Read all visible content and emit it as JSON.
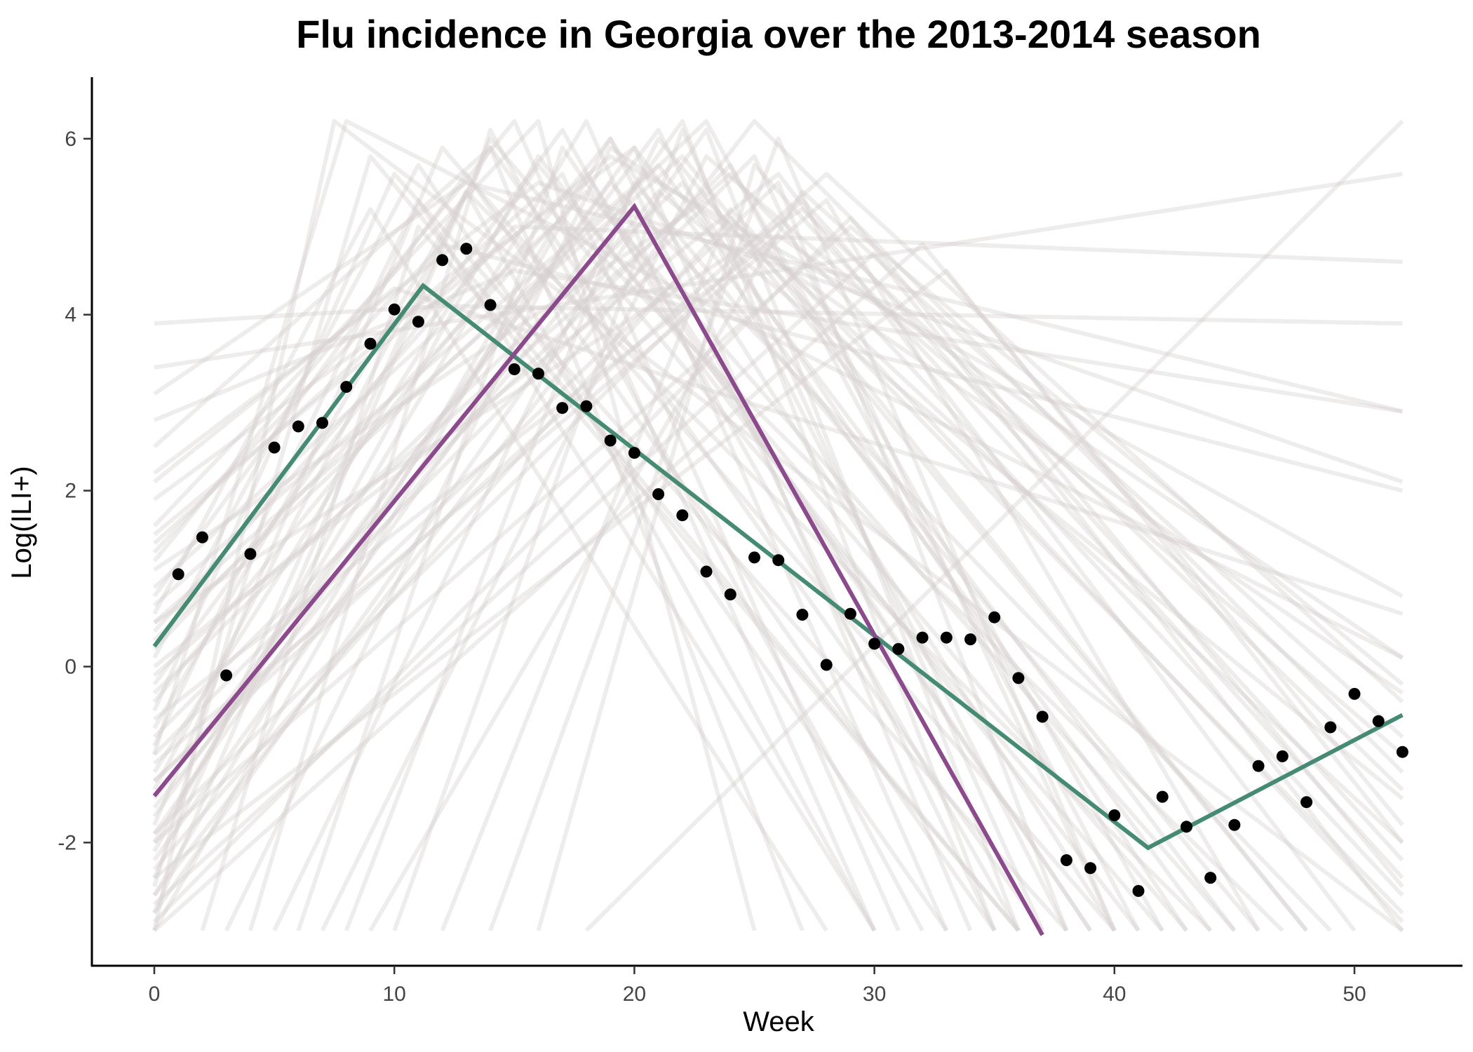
{
  "chart_data": {
    "type": "line",
    "title": "Flu incidence in Georgia over the 2013-2014 season",
    "xlabel": "Week",
    "ylabel": "Log(ILI+)",
    "xlim": [
      -2.6,
      54.5
    ],
    "ylim": [
      -3.4,
      6.7
    ],
    "x_ticks": [
      0,
      10,
      20,
      30,
      40,
      50
    ],
    "y_ticks": [
      -2,
      0,
      2,
      4,
      6
    ],
    "x_tick_labels": [
      "0",
      "10",
      "20",
      "30",
      "40",
      "50"
    ],
    "y_tick_labels": [
      "-2",
      "0",
      "2",
      "4",
      "6"
    ],
    "grid": false,
    "legend": "none",
    "colors": {
      "observed": "#000000",
      "fit_green": "#458B74",
      "fit_purple": "#8B4A8B",
      "samples": "#D8D0D0"
    },
    "observed_points": {
      "x": [
        1,
        2,
        3,
        4,
        5,
        6,
        7,
        8,
        9,
        10,
        11,
        12,
        13,
        14,
        15,
        16,
        17,
        18,
        19,
        20,
        21,
        22,
        23,
        24,
        25,
        26,
        27,
        28,
        29,
        30,
        31,
        32,
        33,
        34,
        35,
        36,
        37,
        38,
        39,
        40,
        41,
        42,
        43,
        44,
        45,
        46,
        47,
        48,
        49,
        50,
        51,
        52
      ],
      "y": [
        1.05,
        1.47,
        -0.1,
        1.28,
        2.49,
        2.73,
        2.77,
        3.18,
        3.67,
        4.06,
        3.92,
        4.62,
        4.75,
        4.11,
        3.38,
        3.33,
        2.94,
        2.96,
        2.57,
        2.43,
        1.96,
        1.72,
        1.08,
        0.82,
        1.24,
        1.21,
        0.59,
        0.02,
        0.6,
        0.26,
        0.2,
        0.33,
        0.33,
        0.31,
        0.56,
        -0.13,
        -0.57,
        -2.2,
        -2.29,
        -1.69,
        -2.55,
        -1.48,
        -1.82,
        -2.4,
        -1.8,
        -1.13,
        -1.02,
        -1.54,
        -0.69,
        -0.31,
        -0.62,
        -0.97
      ]
    },
    "fit_lines": [
      {
        "x": [
          0,
          11.2,
          41.4,
          52
        ],
        "y": [
          0.23,
          4.33,
          -2.06,
          -0.55
        ]
      },
      {
        "x": [
          0,
          20,
          37
        ],
        "y": [
          -1.47,
          5.23,
          -3.05
        ]
      }
    ],
    "sample_lines": [
      {
        "x": [
          0,
          7.5,
          52
        ],
        "y": [
          -3.0,
          6.2,
          -3.0
        ]
      },
      {
        "x": [
          0,
          12,
          52
        ],
        "y": [
          3.9,
          4.1,
          3.9
        ]
      },
      {
        "x": [
          0,
          52
        ],
        "y": [
          3.4,
          5.6
        ]
      },
      {
        "x": [
          0,
          13,
          52
        ],
        "y": [
          3.1,
          5.5,
          2.9
        ]
      },
      {
        "x": [
          0,
          16,
          52
        ],
        "y": [
          2.2,
          5.5,
          2.1
        ]
      },
      {
        "x": [
          0,
          19,
          52
        ],
        "y": [
          1.5,
          5.8,
          0.8
        ]
      },
      {
        "x": [
          0,
          15,
          52
        ],
        "y": [
          0.4,
          5.0,
          4.6
        ]
      },
      {
        "x": [
          0,
          8,
          52
        ],
        "y": [
          -1.0,
          6.2,
          0.1
        ]
      },
      {
        "x": [
          0,
          9,
          36
        ],
        "y": [
          -2.5,
          5.8,
          -3.0
        ]
      },
      {
        "x": [
          0,
          10,
          38
        ],
        "y": [
          -0.5,
          5.6,
          -3.0
        ]
      },
      {
        "x": [
          0,
          12,
          40
        ],
        "y": [
          -1.8,
          5.9,
          -3.0
        ]
      },
      {
        "x": [
          0,
          13,
          35
        ],
        "y": [
          0.8,
          5.6,
          -3.0
        ]
      },
      {
        "x": [
          0,
          14,
          42
        ],
        "y": [
          -2.8,
          6.0,
          -3.0
        ]
      },
      {
        "x": [
          0,
          15,
          30
        ],
        "y": [
          1.2,
          6.2,
          -3.0
        ]
      },
      {
        "x": [
          0,
          16,
          43
        ],
        "y": [
          -1.2,
          5.7,
          -3.0
        ]
      },
      {
        "x": [
          0,
          17,
          36
        ],
        "y": [
          -0.2,
          6.1,
          -3.0
        ]
      },
      {
        "x": [
          0,
          18,
          45
        ],
        "y": [
          0.2,
          5.4,
          -3.0
        ]
      },
      {
        "x": [
          0,
          18,
          33
        ],
        "y": [
          -2.0,
          6.2,
          -3.0
        ]
      },
      {
        "x": [
          0,
          19,
          40
        ],
        "y": [
          -3.0,
          6.0,
          -3.0
        ]
      },
      {
        "x": [
          0,
          20,
          44
        ],
        "y": [
          1.9,
          5.9,
          -3.0
        ]
      },
      {
        "x": [
          0,
          21,
          38
        ],
        "y": [
          -1.5,
          6.1,
          -3.0
        ]
      },
      {
        "x": [
          0,
          22,
          48
        ],
        "y": [
          0.5,
          5.8,
          -3.0
        ]
      },
      {
        "x": [
          0,
          22,
          35
        ],
        "y": [
          -2.2,
          6.2,
          -3.0
        ]
      },
      {
        "x": [
          0,
          23,
          52
        ],
        "y": [
          1.1,
          5.3,
          -2.8
        ]
      },
      {
        "x": [
          0,
          24,
          42
        ],
        "y": [
          -0.8,
          5.7,
          -3.0
        ]
      },
      {
        "x": [
          0,
          25,
          52
        ],
        "y": [
          -2.6,
          6.2,
          -1.2
        ]
      },
      {
        "x": [
          0,
          26,
          50
        ],
        "y": [
          0.0,
          5.6,
          -3.0
        ]
      },
      {
        "x": [
          0,
          27,
          52
        ],
        "y": [
          -1.9,
          5.3,
          -2.2
        ]
      },
      {
        "x": [
          0,
          28,
          52
        ],
        "y": [
          -1.3,
          5.6,
          -0.4
        ]
      },
      {
        "x": [
          0,
          29,
          52
        ],
        "y": [
          -2.9,
          5.1,
          -2.5
        ]
      },
      {
        "x": [
          0,
          32,
          52
        ],
        "y": [
          -3.0,
          4.8,
          -1.8
        ]
      },
      {
        "x": [
          2,
          11,
          36
        ],
        "y": [
          -3.0,
          5.0,
          -3.0
        ]
      },
      {
        "x": [
          4,
          14,
          32
        ],
        "y": [
          -3.0,
          6.1,
          -3.0
        ]
      },
      {
        "x": [
          6,
          17,
          39
        ],
        "y": [
          -3.0,
          5.9,
          -3.0
        ]
      },
      {
        "x": [
          8,
          20,
          46
        ],
        "y": [
          -3.0,
          5.5,
          -3.0
        ]
      },
      {
        "x": [
          10,
          22,
          37
        ],
        "y": [
          -3.0,
          6.1,
          -3.0
        ]
      },
      {
        "x": [
          12,
          24,
          52
        ],
        "y": [
          -3.0,
          5.2,
          -2.9
        ]
      },
      {
        "x": [
          14,
          26,
          40
        ],
        "y": [
          -3.0,
          6.0,
          -3.0
        ]
      },
      {
        "x": [
          16,
          25,
          52
        ],
        "y": [
          -3.0,
          5.7,
          -2.4
        ]
      },
      {
        "x": [
          18,
          52
        ],
        "y": [
          -3.0,
          6.2
        ]
      },
      {
        "x": [
          0,
          11,
          30
        ],
        "y": [
          -0.9,
          5.3,
          -3.0
        ]
      },
      {
        "x": [
          0,
          14,
          27
        ],
        "y": [
          2.5,
          5.9,
          -3.0
        ]
      },
      {
        "x": [
          0,
          16,
          25
        ],
        "y": [
          1.6,
          6.2,
          -3.0
        ]
      },
      {
        "x": [
          0,
          13,
          44
        ],
        "y": [
          -2.4,
          5.4,
          -3.0
        ]
      },
      {
        "x": [
          0,
          17,
          47
        ],
        "y": [
          0.9,
          5.1,
          -3.0
        ]
      },
      {
        "x": [
          0,
          19,
          35
        ],
        "y": [
          -0.4,
          6.0,
          -3.0
        ]
      },
      {
        "x": [
          0,
          21,
          52
        ],
        "y": [
          -1.6,
          5.4,
          -1.5
        ]
      },
      {
        "x": [
          0,
          23,
          41
        ],
        "y": [
          0.3,
          6.2,
          -3.0
        ]
      },
      {
        "x": [
          0,
          24,
          52
        ],
        "y": [
          -2.3,
          5.1,
          -2.0
        ]
      },
      {
        "x": [
          0,
          26,
          52
        ],
        "y": [
          -0.6,
          4.9,
          0.1
        ]
      },
      {
        "x": [
          0,
          28,
          46
        ],
        "y": [
          -1.1,
          5.3,
          -3.0
        ]
      },
      {
        "x": [
          0,
          30,
          52
        ],
        "y": [
          -2.7,
          4.7,
          -3.0
        ]
      },
      {
        "x": [
          0,
          12,
          52
        ],
        "y": [
          1.3,
          4.8,
          2.0
        ]
      },
      {
        "x": [
          0,
          15,
          52
        ],
        "y": [
          2.8,
          4.5,
          2.9
        ]
      },
      {
        "x": [
          0,
          10,
          52
        ],
        "y": [
          2.1,
          4.3,
          0.6
        ]
      },
      {
        "x": [
          0,
          18,
          39
        ],
        "y": [
          -2.6,
          5.6,
          -3.0
        ]
      },
      {
        "x": [
          0,
          20,
          34
        ],
        "y": [
          -1.7,
          5.9,
          -3.0
        ]
      },
      {
        "x": [
          0,
          22,
          43
        ],
        "y": [
          -0.3,
          5.5,
          -3.0
        ]
      },
      {
        "x": [
          0,
          25,
          40
        ],
        "y": [
          -1.0,
          5.8,
          -3.0
        ]
      },
      {
        "x": [
          0,
          13,
          30
        ],
        "y": [
          -0.7,
          5.4,
          -3.0
        ]
      },
      {
        "x": [
          3,
          19,
          52
        ],
        "y": [
          -3.0,
          5.9,
          -0.3
        ]
      },
      {
        "x": [
          5,
          21,
          48
        ],
        "y": [
          -3.0,
          6.0,
          -3.0
        ]
      },
      {
        "x": [
          7,
          23,
          52
        ],
        "y": [
          -3.0,
          5.8,
          -1.0
        ]
      },
      {
        "x": [
          9,
          27,
          52
        ],
        "y": [
          -3.0,
          5.4,
          -0.8
        ]
      },
      {
        "x": [
          0,
          9,
          28
        ],
        "y": [
          0.6,
          5.2,
          -3.0
        ]
      },
      {
        "x": [
          0,
          11,
          33
        ],
        "y": [
          0.1,
          5.7,
          -3.0
        ]
      },
      {
        "x": [
          0,
          14,
          37
        ],
        "y": [
          -1.4,
          5.9,
          -3.0
        ]
      },
      {
        "x": [
          0,
          16,
          41
        ],
        "y": [
          -2.1,
          5.8,
          -3.0
        ]
      },
      {
        "x": [
          0,
          17,
          31
        ],
        "y": [
          1.4,
          5.6,
          -3.0
        ]
      },
      {
        "x": [
          0,
          19,
          49
        ],
        "y": [
          -1.9,
          5.5,
          -3.0
        ]
      },
      {
        "x": [
          0,
          21,
          45
        ],
        "y": [
          0.7,
          5.7,
          -3.0
        ]
      },
      {
        "x": [
          0,
          23,
          36
        ],
        "y": [
          -2.8,
          6.1,
          -3.0
        ]
      },
      {
        "x": [
          0,
          24,
          52
        ],
        "y": [
          -0.1,
          5.6,
          -2.6
        ]
      },
      {
        "x": [
          0,
          26,
          38
        ],
        "y": [
          -1.3,
          5.5,
          -3.0
        ]
      },
      {
        "x": [
          0,
          27,
          52
        ],
        "y": [
          0.5,
          5.2,
          -1.4
        ]
      },
      {
        "x": [
          0,
          29,
          52
        ],
        "y": [
          -2.0,
          5.0,
          -0.2
        ]
      },
      {
        "x": [
          0,
          33,
          52
        ],
        "y": [
          -2.4,
          4.5,
          -2.0
        ]
      }
    ]
  }
}
